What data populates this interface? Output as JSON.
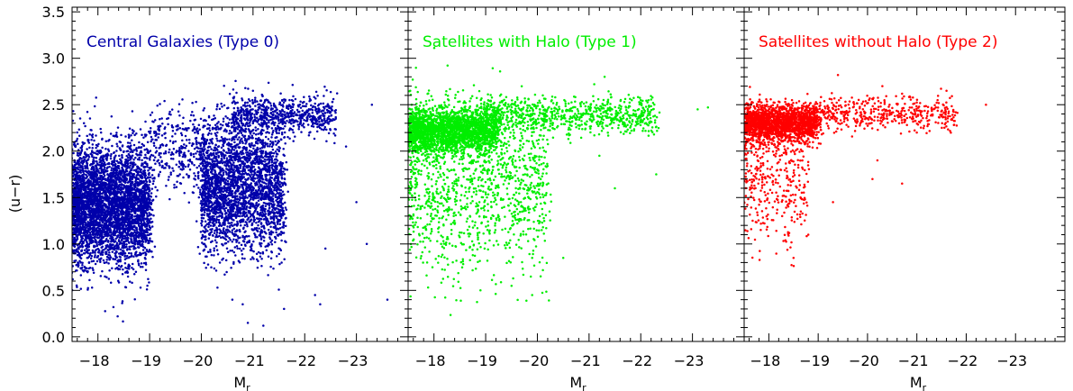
{
  "chart_data": [
    {
      "type": "scatter",
      "title": "Central Galaxies (Type 0)",
      "title_color": "#0000aa",
      "color": "#0000aa",
      "xlabel": "M",
      "xlabel_sub": "r",
      "ylabel": "(u−r)",
      "xlim": [
        -17.5,
        -24.0
      ],
      "ylim": [
        -0.05,
        3.55
      ],
      "xticks": [
        -18,
        -19,
        -20,
        -21,
        -22,
        -23
      ],
      "xtick_labels": [
        "−18",
        "−19",
        "−20",
        "−21",
        "−22",
        "−23"
      ],
      "yticks": [
        0.0,
        0.5,
        1.0,
        1.5,
        2.0,
        2.5,
        3.0,
        3.5
      ],
      "ytick_labels": [
        "0.0",
        "0.5",
        "1.0",
        "1.5",
        "2.0",
        "2.5",
        "3.0",
        "3.5"
      ],
      "grid": false,
      "components": [
        {
          "mx": -17.5,
          "ux": -19.0,
          "sx": 1.0,
          "my": 1.42,
          "sy": 0.32,
          "n": 4200
        },
        {
          "mx": -20.0,
          "ux": -21.6,
          "sx": 0.7,
          "my": 1.55,
          "sy": 0.32,
          "n": 2400
        },
        {
          "mx": -20.6,
          "ux": -22.6,
          "sx": 0.6,
          "my": 2.38,
          "sy": 0.1,
          "n": 700
        },
        {
          "mx": -19.0,
          "ux": -21.5,
          "sx": 1.0,
          "my": 2.0,
          "sy": 0.25,
          "n": 700
        }
      ],
      "points": [
        {
          "x": -20.9,
          "y": 0.15
        },
        {
          "x": -21.2,
          "y": 0.12
        },
        {
          "x": -20.6,
          "y": 0.4
        },
        {
          "x": -20.8,
          "y": 0.35
        },
        {
          "x": -21.6,
          "y": 0.3
        },
        {
          "x": -22.3,
          "y": 0.35
        },
        {
          "x": -22.2,
          "y": 0.45
        },
        {
          "x": -23.2,
          "y": 1.0
        },
        {
          "x": -23.0,
          "y": 1.45
        },
        {
          "x": -23.6,
          "y": 0.4
        },
        {
          "x": -22.6,
          "y": 2.35
        },
        {
          "x": -23.3,
          "y": 2.5
        },
        {
          "x": -21.0,
          "y": 2.65
        },
        {
          "x": -22.4,
          "y": 0.95
        },
        {
          "x": -18.3,
          "y": 0.32
        },
        {
          "x": -22.8,
          "y": 2.05
        }
      ]
    },
    {
      "type": "scatter",
      "title": "Satellites with Halo (Type 1)",
      "title_color": "#00ee00",
      "color": "#00ee00",
      "xlabel": "M",
      "xlabel_sub": "r",
      "ylabel": "",
      "xlim": [
        -17.5,
        -24.0
      ],
      "ylim": [
        -0.05,
        3.55
      ],
      "xticks": [
        -18,
        -19,
        -20,
        -21,
        -22,
        -23
      ],
      "xtick_labels": [
        "−18",
        "−19",
        "−20",
        "−21",
        "−22",
        "−23"
      ],
      "yticks": [
        0.0,
        0.5,
        1.0,
        1.5,
        2.0,
        2.5,
        3.0,
        3.5
      ],
      "ytick_labels": [],
      "grid": false,
      "components": [
        {
          "mx": -17.5,
          "ux": -19.2,
          "sx": 1.2,
          "my": 2.22,
          "sy": 0.12,
          "n": 2400
        },
        {
          "mx": -19.0,
          "ux": -22.3,
          "sx": 0.9,
          "my": 2.38,
          "sy": 0.1,
          "n": 800
        },
        {
          "mx": -17.5,
          "ux": -20.2,
          "sx": 1.0,
          "my": 1.6,
          "sy": 0.45,
          "n": 1200
        }
      ],
      "points": [
        {
          "x": -21.3,
          "y": 2.8
        },
        {
          "x": -21.1,
          "y": 2.72
        },
        {
          "x": -22.0,
          "y": 2.55
        },
        {
          "x": -23.1,
          "y": 2.45
        },
        {
          "x": -23.3,
          "y": 2.47
        },
        {
          "x": -20.5,
          "y": 0.85
        },
        {
          "x": -19.5,
          "y": 0.55
        },
        {
          "x": -21.2,
          "y": 1.95
        },
        {
          "x": -22.3,
          "y": 1.75
        },
        {
          "x": -19.9,
          "y": 0.45
        },
        {
          "x": -18.9,
          "y": 0.5
        },
        {
          "x": -21.5,
          "y": 1.6
        }
      ]
    },
    {
      "type": "scatter",
      "title": "Satellites without Halo (Type 2)",
      "title_color": "#ff0000",
      "color": "#ff0000",
      "xlabel": "M",
      "xlabel_sub": "r",
      "ylabel": "",
      "xlim": [
        -17.5,
        -24.0
      ],
      "ylim": [
        -0.05,
        3.55
      ],
      "xticks": [
        -18,
        -19,
        -20,
        -21,
        -22,
        -23
      ],
      "xtick_labels": [
        "−18",
        "−19",
        "−20",
        "−21",
        "−22",
        "−23"
      ],
      "yticks": [
        0.0,
        0.5,
        1.0,
        1.5,
        2.0,
        2.5,
        3.0,
        3.5
      ],
      "ytick_labels": [],
      "grid": false,
      "components": [
        {
          "mx": -17.5,
          "ux": -19.0,
          "sx": 0.8,
          "my": 2.3,
          "sy": 0.1,
          "n": 1800
        },
        {
          "mx": -19.0,
          "ux": -21.8,
          "sx": 0.7,
          "my": 2.4,
          "sy": 0.09,
          "n": 450
        },
        {
          "mx": -17.5,
          "ux": -18.8,
          "sx": 0.5,
          "my": 1.75,
          "sy": 0.38,
          "n": 400
        }
      ],
      "points": [
        {
          "x": -19.4,
          "y": 2.82
        },
        {
          "x": -20.3,
          "y": 2.7
        },
        {
          "x": -22.4,
          "y": 2.5
        },
        {
          "x": -20.1,
          "y": 1.7
        },
        {
          "x": -20.7,
          "y": 1.65
        },
        {
          "x": -18.5,
          "y": 0.85
        },
        {
          "x": -18.8,
          "y": 1.1
        },
        {
          "x": -19.3,
          "y": 1.45
        },
        {
          "x": -20.2,
          "y": 1.9
        },
        {
          "x": -21.6,
          "y": 2.65
        }
      ]
    }
  ]
}
